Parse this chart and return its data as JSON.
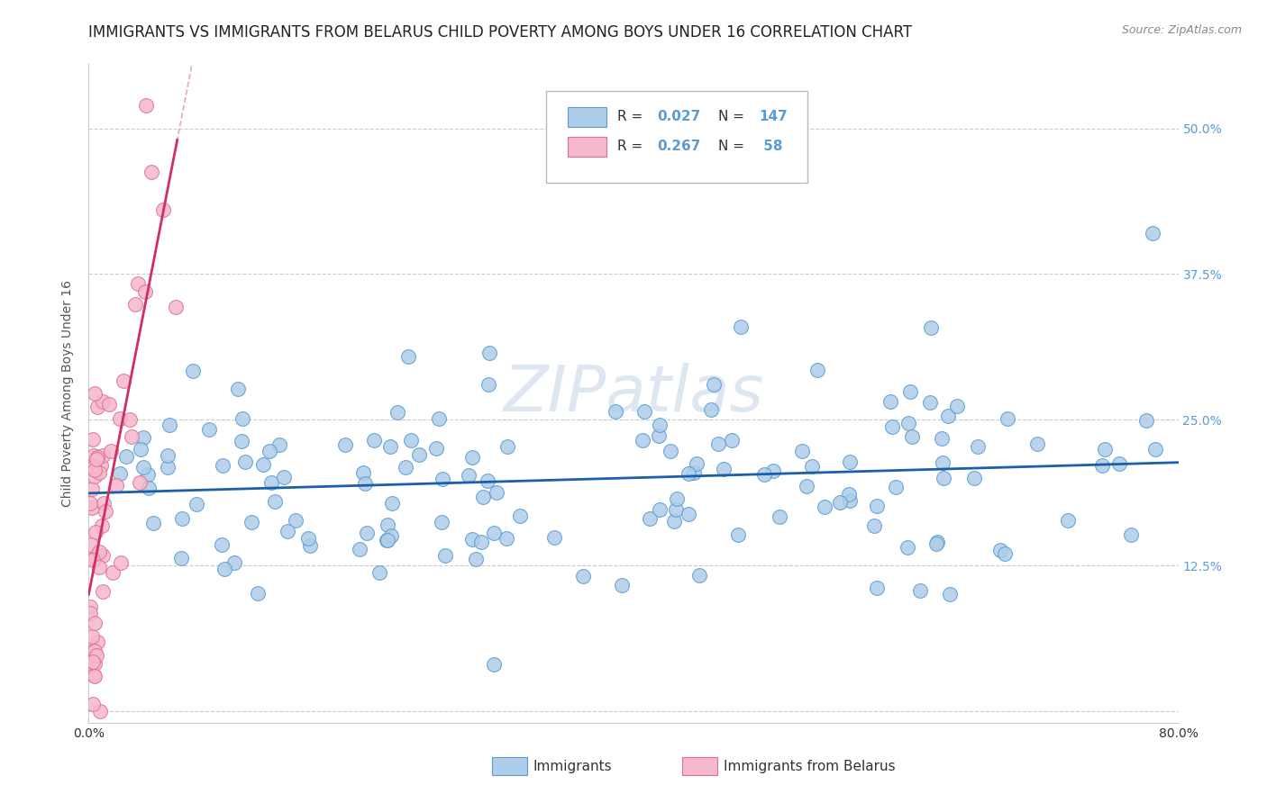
{
  "title": "IMMIGRANTS VS IMMIGRANTS FROM BELARUS CHILD POVERTY AMONG BOYS UNDER 16 CORRELATION CHART",
  "source": "Source: ZipAtlas.com",
  "ylabel": "Child Poverty Among Boys Under 16",
  "xlim": [
    0.0,
    0.8
  ],
  "ylim": [
    -0.01,
    0.555
  ],
  "yticks": [
    0.0,
    0.125,
    0.25,
    0.375,
    0.5
  ],
  "ytick_labels": [
    "",
    "12.5%",
    "25.0%",
    "37.5%",
    "50.0%"
  ],
  "xtick_labels": [
    "0.0%",
    "",
    "",
    "",
    "",
    "",
    "",
    "",
    "80.0%"
  ],
  "series1_color": "#aecde8",
  "series1_edge": "#5b9bd5",
  "series2_color": "#f5b8cc",
  "series2_edge": "#e07090",
  "regression1_color": "#1a5fa8",
  "regression2_color": "#d03060",
  "diag_color": "#ddaacc",
  "R1": 0.027,
  "N1": 147,
  "R2": 0.267,
  "N2": 58,
  "legend_label1": "Immigrants",
  "legend_label2": "Immigrants from Belarus",
  "watermark": "ZIPatlas",
  "title_fontsize": 12,
  "axis_label_fontsize": 10,
  "tick_fontsize": 10,
  "background_color": "#ffffff",
  "grid_color": "#cccccc",
  "tick_color": "#5b9bd5",
  "marker_size": 130
}
